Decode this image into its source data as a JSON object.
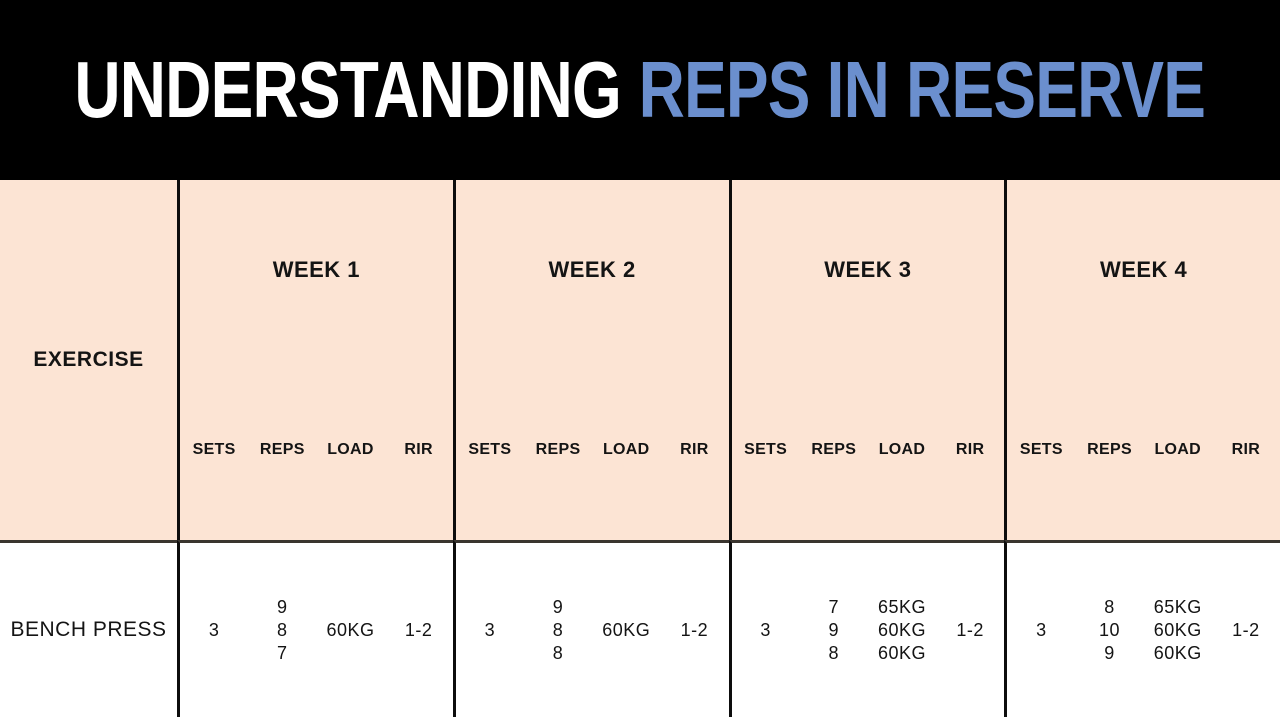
{
  "title": {
    "part1": "UNDERSTANDING",
    "part2": "REPS IN RESERVE"
  },
  "colors": {
    "banner_bg": "#000000",
    "accent_blue": "#6b8fce",
    "header_bg": "#fce4d4"
  },
  "chart_data": {
    "type": "table",
    "title": "UNDERSTANDING REPS IN RESERVE",
    "row_header": "EXERCISE",
    "groups": [
      "WEEK 1",
      "WEEK 2",
      "WEEK 3",
      "WEEK 4"
    ],
    "sub_columns": [
      "SETS",
      "REPS",
      "LOAD",
      "RIR"
    ],
    "rows": [
      {
        "exercise": "BENCH PRESS",
        "weeks": [
          {
            "sets": "3",
            "reps": [
              "9",
              "8",
              "7"
            ],
            "load": [
              "60KG"
            ],
            "rir": "1-2"
          },
          {
            "sets": "3",
            "reps": [
              "9",
              "8",
              "8"
            ],
            "load": [
              "60KG"
            ],
            "rir": "1-2"
          },
          {
            "sets": "3",
            "reps": [
              "7",
              "9",
              "8"
            ],
            "load": [
              "65KG",
              "60KG",
              "60KG"
            ],
            "rir": "1-2"
          },
          {
            "sets": "3",
            "reps": [
              "8",
              "10",
              "9"
            ],
            "load": [
              "65KG",
              "60KG",
              "60KG"
            ],
            "rir": "1-2"
          }
        ]
      }
    ]
  }
}
